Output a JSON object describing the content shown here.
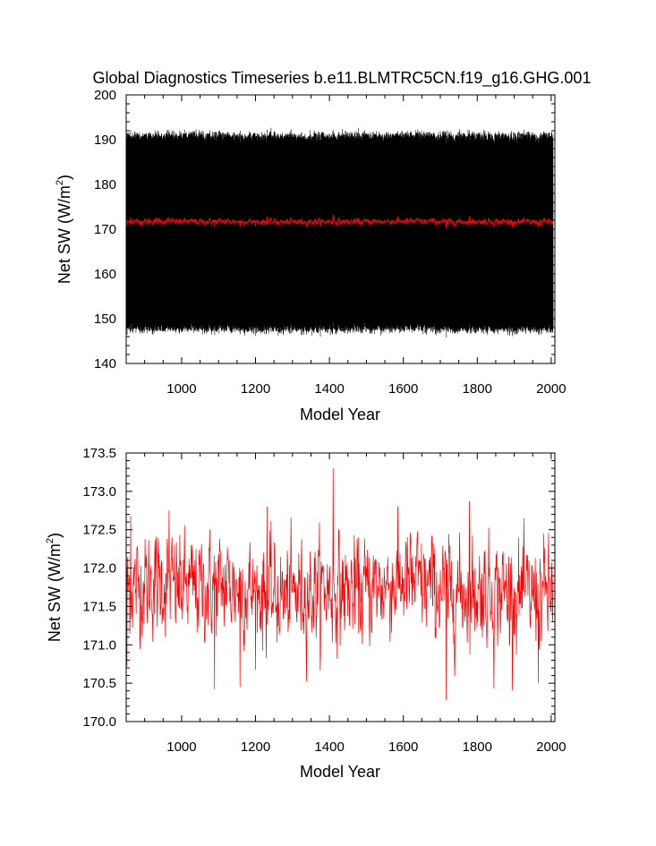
{
  "figure": {
    "title": "Global Diagnostics Timeseries b.e11.BLMTRC5CN.f19_g16.GHG.001"
  },
  "chart_data": [
    {
      "type": "line",
      "xlabel": "Model Year",
      "ylabel_main": "Net SW (W/m",
      "ylabel_sup": "2",
      "ylabel_tail": ")",
      "xlim": [
        850,
        2010
      ],
      "ylim": [
        140,
        200
      ],
      "xticks": [
        1000,
        1200,
        1400,
        1600,
        1800,
        2000
      ],
      "xtick_labels": [
        "1000",
        "1200",
        "1400",
        "1600",
        "1800",
        "2000"
      ],
      "yticks": [
        140,
        150,
        160,
        170,
        180,
        190,
        200
      ],
      "ytick_labels": [
        "140",
        "150",
        "160",
        "170",
        "180",
        "190",
        "200"
      ],
      "grid": false,
      "legend": "none",
      "series": [
        {
          "kind": "monthly",
          "color": "#000000",
          "x_start": 850,
          "x_end": 2005,
          "seasonal_min": 147.5,
          "seasonal_max": 191.0,
          "observed_extremes": [
            145.8,
            193.4
          ]
        },
        {
          "kind": "annual",
          "color": "#ff0000",
          "x_start": 850,
          "x_end": 2005,
          "mean": 171.7
        }
      ]
    },
    {
      "type": "line",
      "xlabel": "Model Year",
      "ylabel_main": "Net SW (W/m",
      "ylabel_sup": "2",
      "ylabel_tail": ")",
      "xlim": [
        850,
        2010
      ],
      "ylim": [
        170.0,
        173.5
      ],
      "xticks": [
        1000,
        1200,
        1400,
        1600,
        1800,
        2000
      ],
      "xtick_labels": [
        "1000",
        "1200",
        "1400",
        "1600",
        "1800",
        "2000"
      ],
      "yticks": [
        170.0,
        170.5,
        171.0,
        171.5,
        172.0,
        172.5,
        173.0,
        173.5
      ],
      "ytick_labels": [
        "170.0",
        "170.5",
        "171.0",
        "171.5",
        "172.0",
        "172.5",
        "173.0",
        "173.5"
      ],
      "grid": false,
      "legend": "none",
      "series": [
        {
          "kind": "annual",
          "color": "#ff0000",
          "x_start": 850,
          "x_end": 2005,
          "mean": 171.72,
          "std": 0.33,
          "min": 170.28,
          "max": 173.3,
          "peaks": [
            {
              "x": 862,
              "y": 172.68
            },
            {
              "x": 966,
              "y": 172.75
            },
            {
              "x": 1231,
              "y": 172.8
            },
            {
              "x": 1410,
              "y": 173.3
            },
            {
              "x": 1779,
              "y": 172.87
            }
          ],
          "troughs": [
            {
              "x": 852,
              "y": 170.72
            },
            {
              "x": 1089,
              "y": 170.42
            },
            {
              "x": 1158,
              "y": 170.45
            },
            {
              "x": 1716,
              "y": 170.28
            },
            {
              "x": 1845,
              "y": 170.43
            },
            {
              "x": 1965,
              "y": 170.5
            }
          ]
        }
      ]
    }
  ]
}
